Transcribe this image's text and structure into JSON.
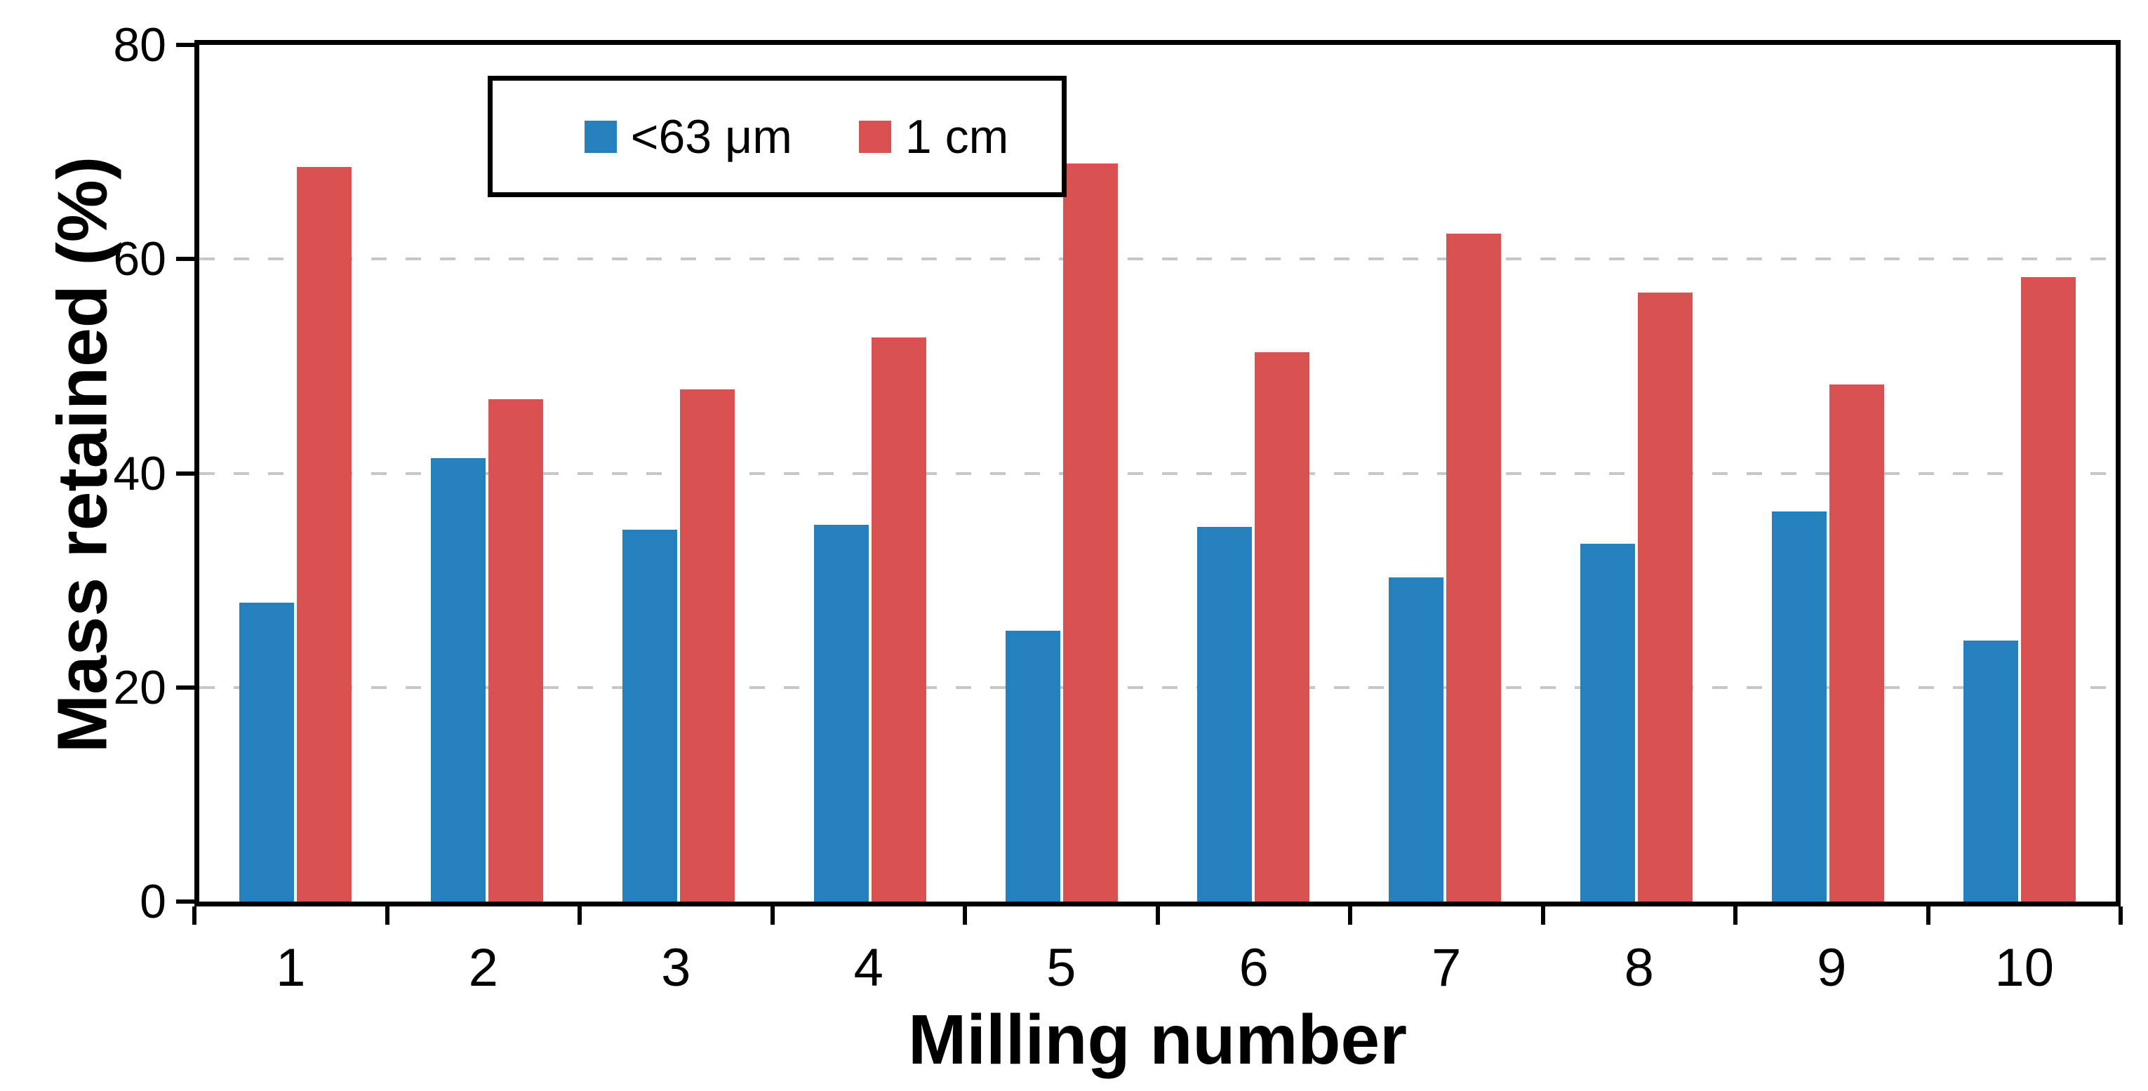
{
  "chart_data": {
    "type": "bar",
    "title": "",
    "xlabel": "Milling number",
    "ylabel": "Mass retained (%)",
    "categories": [
      "1",
      "2",
      "3",
      "4",
      "5",
      "6",
      "7",
      "8",
      "9",
      "10"
    ],
    "series": [
      {
        "name": "<63 μm",
        "color": "#2581BE",
        "values": [
          27.9,
          41.4,
          34.7,
          35.2,
          25.3,
          35.0,
          30.3,
          33.4,
          36.4,
          24.4
        ]
      },
      {
        "name": "1 cm",
        "color": "#D95151",
        "values": [
          68.6,
          46.9,
          47.8,
          52.7,
          68.9,
          51.3,
          62.4,
          56.9,
          48.3,
          58.3
        ]
      }
    ],
    "ylim": [
      0,
      80
    ],
    "yticks": [
      0,
      20,
      40,
      60,
      80
    ],
    "gridlines": {
      "values": [
        20,
        40,
        60
      ],
      "style": "dashed",
      "color": "#c7c7c7"
    },
    "legend_position": "top-center-inside-plot",
    "grid": "horizontal-dashed",
    "plot_border": "full-box"
  }
}
